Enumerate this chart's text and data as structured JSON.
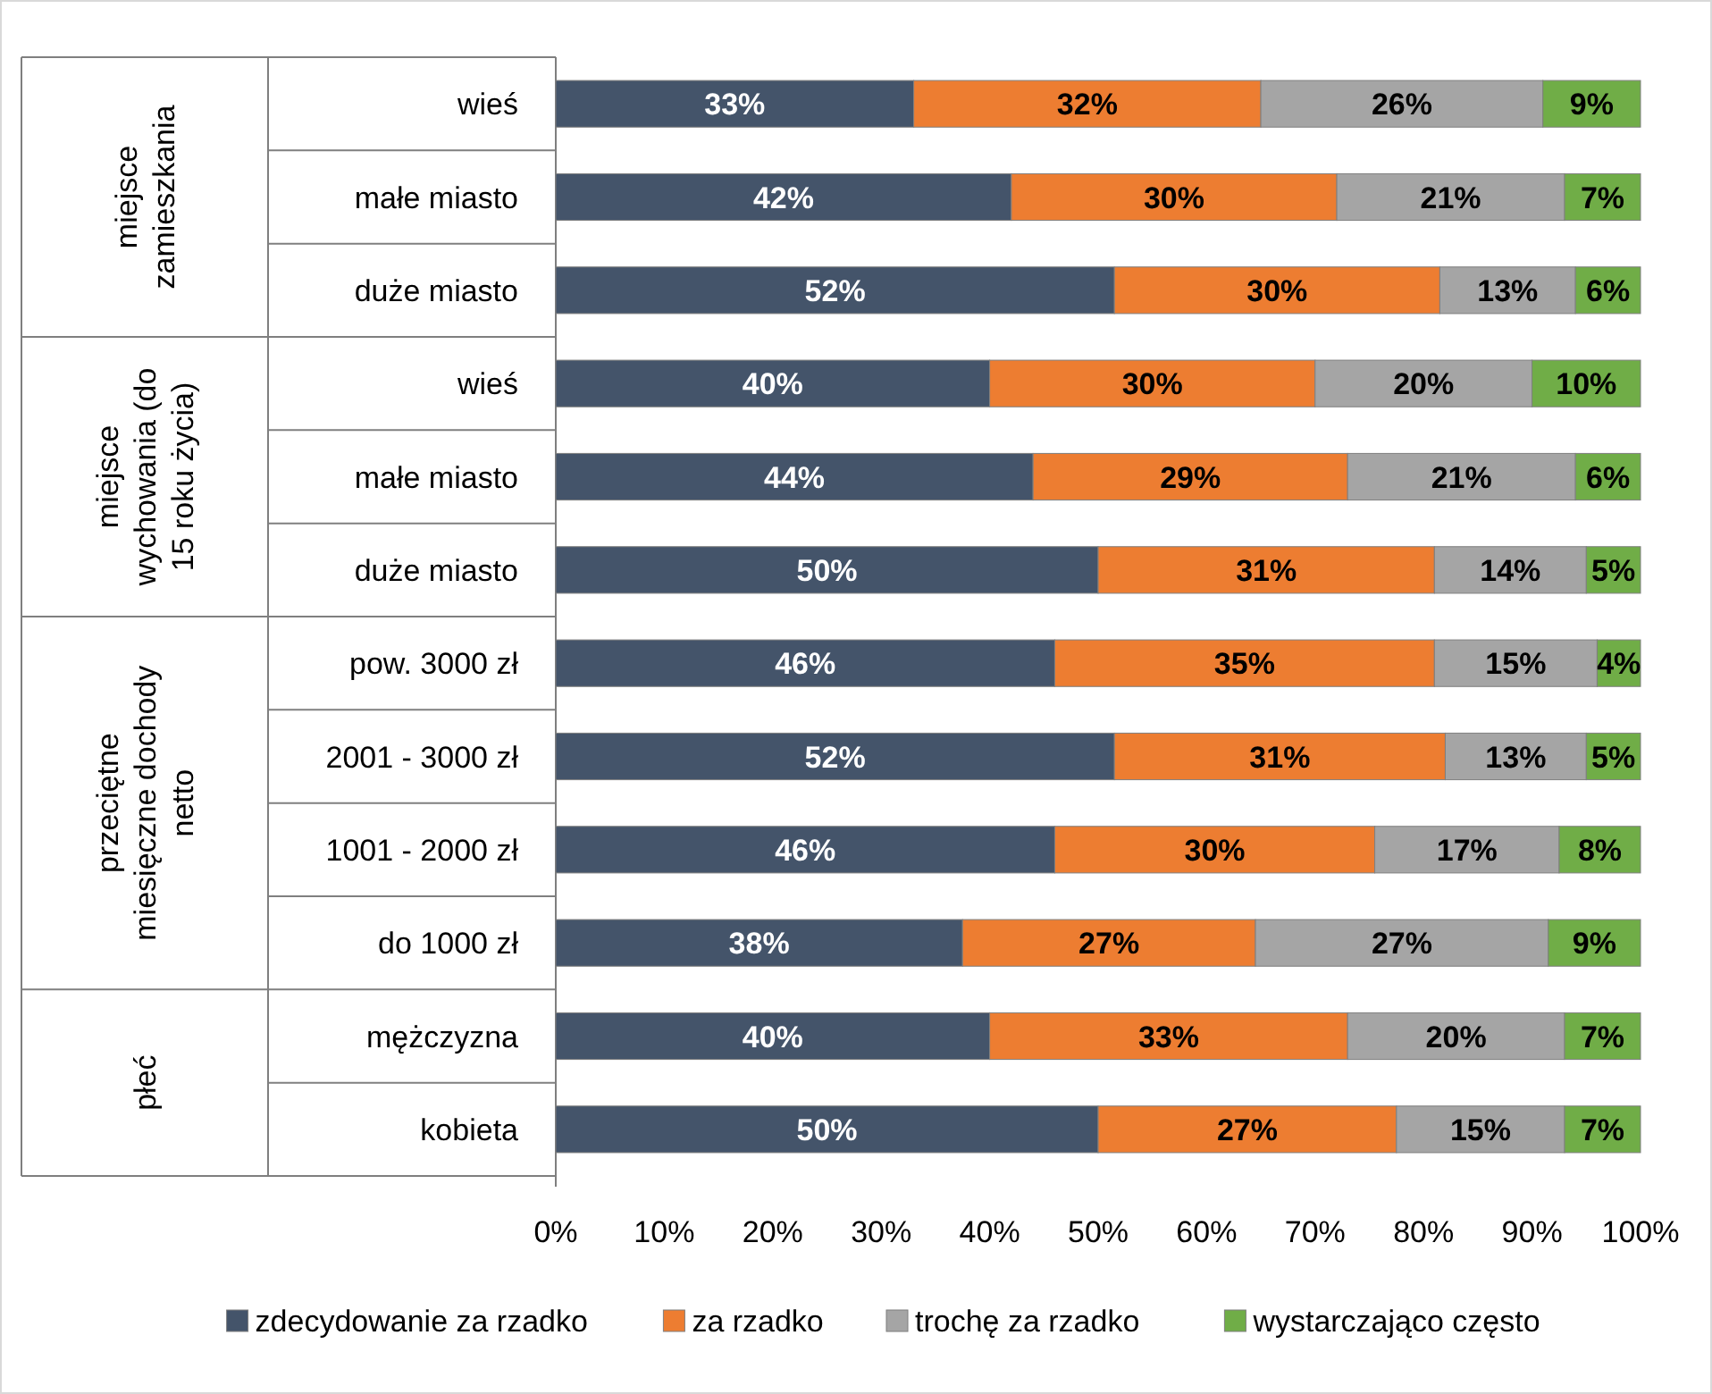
{
  "chart_data": {
    "type": "bar",
    "orientation": "horizontal",
    "stacked": true,
    "legend": "bottom",
    "grid": false,
    "categories": [
      "wieś",
      "małe miasto",
      "duże miasto",
      "wieś",
      "małe miasto",
      "duże miasto",
      "pow. 3000 zł",
      "2001 - 3000 zł",
      "1001 - 2000 zł",
      "do 1000 zł",
      "mężczyzna",
      "kobieta"
    ],
    "series": [
      {
        "name": "zdecydowanie za rzadko",
        "color": "#44546a",
        "values": [
          33,
          42,
          51.5,
          40,
          44,
          50,
          46,
          51.5,
          46,
          37.5,
          40,
          50
        ],
        "value_labels": [
          "33%",
          "42%",
          "52%",
          "40%",
          "44%",
          "50%",
          "46%",
          "52%",
          "46%",
          "38%",
          "40%",
          "50%"
        ]
      },
      {
        "name": "za rzadko",
        "color": "#ed7d31",
        "values": [
          32,
          30,
          30,
          30,
          29,
          31,
          35,
          30.5,
          29.5,
          27,
          33,
          27.5
        ],
        "value_labels": [
          "32%",
          "30%",
          "30%",
          "30%",
          "29%",
          "31%",
          "35%",
          "31%",
          "30%",
          "27%",
          "33%",
          "27%"
        ]
      },
      {
        "name": "trochę za rzadko",
        "color": "#a5a5a5",
        "values": [
          26,
          21,
          12.5,
          20,
          21,
          14,
          15,
          13,
          17,
          27,
          20,
          15.5
        ],
        "value_labels": [
          "26%",
          "21%",
          "13%",
          "20%",
          "21%",
          "14%",
          "15%",
          "13%",
          "17%",
          "27%",
          "20%",
          "15%"
        ]
      },
      {
        "name": "wystarczająco często",
        "color": "#70ad47",
        "values": [
          9,
          7,
          6,
          10,
          6,
          5,
          4,
          5,
          7.5,
          8.5,
          7,
          7
        ],
        "value_labels": [
          "9%",
          "7%",
          "6%",
          "10%",
          "6%",
          "5%",
          "4%",
          "5%",
          "8%",
          "9%",
          "7%",
          "7%"
        ]
      }
    ],
    "xlim": [
      0,
      100
    ],
    "xticks": [
      {
        "value": 0,
        "label": "0%"
      },
      {
        "value": 10,
        "label": "10%"
      },
      {
        "value": 20,
        "label": "20%"
      },
      {
        "value": 30,
        "label": "30%"
      },
      {
        "value": 40,
        "label": "40%"
      },
      {
        "value": 50,
        "label": "50%"
      },
      {
        "value": 60,
        "label": "60%"
      },
      {
        "value": 70,
        "label": "70%"
      },
      {
        "value": 80,
        "label": "80%"
      },
      {
        "value": 90,
        "label": "90%"
      },
      {
        "value": 100,
        "label": "100%"
      }
    ],
    "annotations": [
      "miejsce zamieszkania",
      "miejsce wychowania (do 15 roku życia)",
      "przeciętne miesięczne dochody netto",
      "płeć"
    ]
  }
}
